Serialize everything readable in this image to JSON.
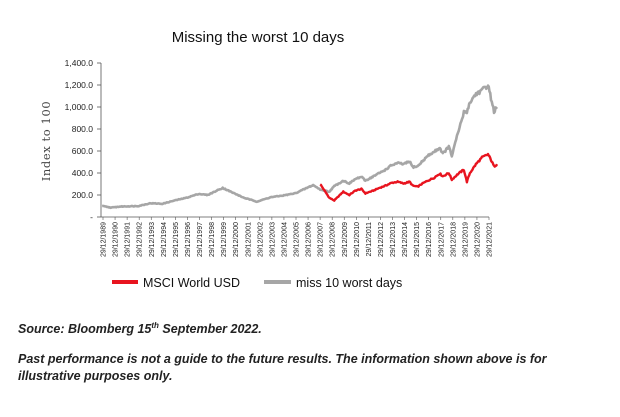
{
  "chart_data": {
    "type": "line",
    "title": "Missing the worst 10 days",
    "ylabel": "Index to 100",
    "xlabel": "",
    "ylim": [
      0,
      1400
    ],
    "y_ticks": [
      "1,400.0",
      "1,200.0",
      "1,000.0",
      "800.0",
      "600.0",
      "400.0",
      "200.0",
      "-"
    ],
    "y_tick_values": [
      1400,
      1200,
      1000,
      800,
      600,
      400,
      200,
      0
    ],
    "x_tick_labels": [
      "29/12/1989",
      "29/12/1990",
      "29/12/1991",
      "29/12/1992",
      "29/12/1993",
      "29/12/1994",
      "29/12/1995",
      "29/12/1996",
      "29/12/1997",
      "29/12/1998",
      "29/12/1999",
      "29/12/2000",
      "29/12/2001",
      "29/12/2002",
      "29/12/2003",
      "29/12/2004",
      "29/12/2005",
      "29/12/2006",
      "29/12/2007",
      "29/12/2008",
      "29/12/2009",
      "29/12/2010",
      "29/12/2011",
      "29/12/2012",
      "29/12/2013",
      "29/12/2014",
      "29/12/2015",
      "29/12/2016",
      "29/12/2017",
      "29/12/2018",
      "29/12/2019",
      "29/12/2020",
      "29/12/2021"
    ],
    "legend_position": "bottom",
    "grid": false,
    "series": [
      {
        "name": "MSCI World USD",
        "color": "#e8141f",
        "x": [
          "2008-01",
          "2008-10",
          "2009-03",
          "2009-12",
          "2010-06",
          "2010-12",
          "2011-06",
          "2011-10",
          "2012-06",
          "2012-12",
          "2013-06",
          "2013-12",
          "2014-06",
          "2014-12",
          "2015-06",
          "2015-09",
          "2016-02",
          "2016-06",
          "2016-12",
          "2017-06",
          "2017-12",
          "2018-03",
          "2018-09",
          "2018-12",
          "2019-06",
          "2019-12",
          "2020-03",
          "2020-06",
          "2020-12",
          "2021-06",
          "2021-12",
          "2022-03",
          "2022-06",
          "2022-09"
        ],
        "values": [
          300,
          175,
          150,
          230,
          200,
          240,
          255,
          215,
          240,
          265,
          285,
          310,
          320,
          305,
          320,
          285,
          275,
          300,
          330,
          355,
          395,
          370,
          400,
          340,
          390,
          430,
          320,
          400,
          480,
          540,
          570,
          520,
          460,
          480
        ]
      },
      {
        "name": "miss 10 worst days",
        "color": "#a6a6a6",
        "x": [
          "1989-12",
          "1990-09",
          "1991-06",
          "1992-12",
          "1993-12",
          "1994-12",
          "1995-12",
          "1996-12",
          "1997-12",
          "1998-09",
          "1999-12",
          "2000-09",
          "2001-09",
          "2002-10",
          "2003-12",
          "2004-12",
          "2005-12",
          "2006-12",
          "2007-06",
          "2008-01",
          "2008-10",
          "2009-03",
          "2009-12",
          "2010-06",
          "2010-12",
          "2011-06",
          "2011-10",
          "2012-06",
          "2012-12",
          "2013-06",
          "2013-12",
          "2014-06",
          "2014-12",
          "2015-06",
          "2015-09",
          "2016-02",
          "2016-06",
          "2016-12",
          "2017-06",
          "2017-12",
          "2018-03",
          "2018-09",
          "2018-12",
          "2019-06",
          "2019-12",
          "2020-03",
          "2020-06",
          "2020-12",
          "2021-06",
          "2021-12",
          "2022-03",
          "2022-06",
          "2022-09"
        ],
        "values": [
          100,
          85,
          95,
          100,
          125,
          120,
          150,
          175,
          210,
          200,
          265,
          225,
          175,
          140,
          180,
          195,
          215,
          265,
          290,
          250,
          230,
          280,
          330,
          305,
          345,
          365,
          330,
          370,
          400,
          430,
          470,
          490,
          480,
          505,
          455,
          460,
          500,
          555,
          590,
          630,
          575,
          640,
          555,
          760,
          950,
          960,
          1040,
          1120,
          1150,
          1200,
          1080,
          960,
          1000
        ]
      }
    ]
  },
  "legend": {
    "items": [
      {
        "label": "MSCI World USD",
        "color": "#e8141f"
      },
      {
        "label": "miss 10 worst days",
        "color": "#a6a6a6"
      }
    ]
  },
  "footnotes": {
    "source_prefix": "Source: Bloomberg 15",
    "source_sup": "th",
    "source_suffix": " September 2022.",
    "disclaimer": "Past performance is not a guide to the future results. The information shown above is for illustrative purposes only."
  }
}
